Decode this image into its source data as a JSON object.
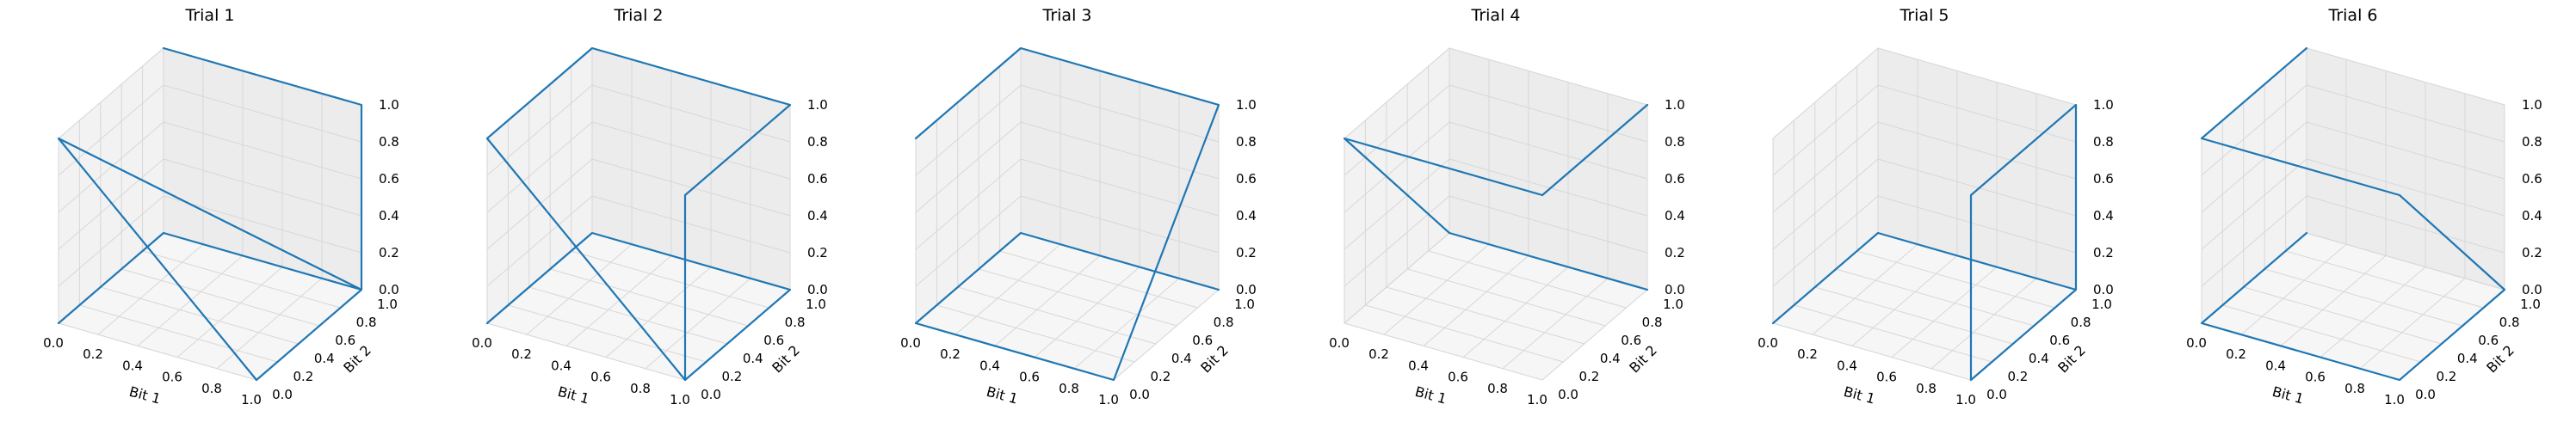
{
  "colors": {
    "line": "#1f77b4",
    "pane_left": "#f2f2f2",
    "pane_right": "#ececec",
    "pane_floor": "#f6f6f6",
    "grid": "#d7d7d7"
  },
  "chart_data": [
    {
      "type": "line",
      "title": "Trial 1",
      "xlabel": "Bit 1",
      "ylabel": "Bit 2",
      "zlabel": "",
      "xlim": [
        0,
        1
      ],
      "ylim": [
        0,
        1
      ],
      "zlim": [
        0,
        1
      ],
      "xticks": [
        "0.0",
        "0.2",
        "0.4",
        "0.6",
        "0.8",
        "1.0"
      ],
      "yticks": [
        "0.0",
        "0.2",
        "0.4",
        "0.6",
        "0.8",
        "1.0"
      ],
      "zticks": [
        "0.0",
        "0.2",
        "0.4",
        "0.6",
        "0.8",
        "1.0"
      ],
      "grid": true,
      "series": [
        {
          "x": [
            0,
            0,
            1,
            1,
            0,
            1,
            1,
            0
          ],
          "y": [
            0,
            1,
            1,
            0,
            0,
            1,
            1,
            1
          ],
          "z": [
            0,
            0,
            0,
            0,
            1,
            0,
            1,
            1
          ]
        }
      ]
    },
    {
      "type": "line",
      "title": "Trial 2",
      "xlabel": "Bit 1",
      "ylabel": "Bit 2",
      "zlabel": "",
      "xlim": [
        0,
        1
      ],
      "ylim": [
        0,
        1
      ],
      "zlim": [
        0,
        1
      ],
      "xticks": [
        "0.0",
        "0.2",
        "0.4",
        "0.6",
        "0.8",
        "1.0"
      ],
      "yticks": [
        "0.0",
        "0.2",
        "0.4",
        "0.6",
        "0.8",
        "1.0"
      ],
      "zticks": [
        "0.0",
        "0.2",
        "0.4",
        "0.6",
        "0.8",
        "1.0"
      ],
      "grid": true,
      "series": [
        {
          "x": [
            0,
            0,
            1,
            1,
            0,
            0,
            1,
            1,
            1
          ],
          "y": [
            0,
            1,
            1,
            0,
            0,
            1,
            1,
            0,
            0
          ],
          "z": [
            0,
            0,
            0,
            0,
            1,
            1,
            1,
            1,
            0
          ]
        }
      ]
    },
    {
      "type": "line",
      "title": "Trial 3",
      "xlabel": "Bit 1",
      "ylabel": "Bit 2",
      "zlabel": "",
      "xlim": [
        0,
        1
      ],
      "ylim": [
        0,
        1
      ],
      "zlim": [
        0,
        1
      ],
      "xticks": [
        "0.0",
        "0.2",
        "0.4",
        "0.6",
        "0.8",
        "1.0"
      ],
      "yticks": [
        "0.0",
        "0.2",
        "0.4",
        "0.6",
        "0.8",
        "1.0"
      ],
      "zticks": [
        "0.0",
        "0.2",
        "0.4",
        "0.6",
        "0.8",
        "1.0"
      ],
      "grid": true,
      "series": [
        {
          "x": [
            0,
            0,
            1,
            1,
            0,
            0,
            1
          ],
          "y": [
            0,
            1,
            1,
            0,
            0,
            1,
            1
          ],
          "z": [
            1,
            1,
            1,
            0,
            0,
            0,
            0
          ]
        }
      ]
    },
    {
      "type": "line",
      "title": "Trial 4",
      "xlabel": "Bit 1",
      "ylabel": "Bit 2",
      "zlabel": "",
      "xlim": [
        0,
        1
      ],
      "ylim": [
        0,
        1
      ],
      "zlim": [
        0,
        1
      ],
      "xticks": [
        "0.0",
        "0.2",
        "0.4",
        "0.6",
        "0.8",
        "1.0"
      ],
      "yticks": [
        "0.0",
        "0.2",
        "0.4",
        "0.6",
        "0.8",
        "1.0"
      ],
      "zticks": [
        "0.0",
        "0.2",
        "0.4",
        "0.6",
        "0.8",
        "1.0"
      ],
      "grid": true,
      "series": [
        {
          "x": [
            1,
            1,
            0,
            0,
            1,
            1
          ],
          "y": [
            1,
            0,
            0,
            1,
            1,
            1
          ],
          "z": [
            1,
            1,
            1,
            0,
            0,
            0
          ]
        }
      ]
    },
    {
      "type": "line",
      "title": "Trial 5",
      "xlabel": "Bit 1",
      "ylabel": "Bit 2",
      "zlabel": "",
      "xlim": [
        0,
        1
      ],
      "ylim": [
        0,
        1
      ],
      "zlim": [
        0,
        1
      ],
      "xticks": [
        "0.0",
        "0.2",
        "0.4",
        "0.6",
        "0.8",
        "1.0"
      ],
      "yticks": [
        "0.0",
        "0.2",
        "0.4",
        "0.6",
        "0.8",
        "1.0"
      ],
      "zticks": [
        "0.0",
        "0.2",
        "0.4",
        "0.6",
        "0.8",
        "1.0"
      ],
      "grid": true,
      "series": [
        {
          "x": [
            0,
            0,
            1,
            1,
            1,
            1,
            1
          ],
          "y": [
            0,
            1,
            1,
            0,
            0,
            1,
            1
          ],
          "z": [
            0,
            0,
            0,
            0,
            1,
            1,
            0
          ]
        }
      ]
    },
    {
      "type": "line",
      "title": "Trial 6",
      "xlabel": "Bit 1",
      "ylabel": "Bit 2",
      "zlabel": "",
      "xlim": [
        0,
        1
      ],
      "ylim": [
        0,
        1
      ],
      "zlim": [
        0,
        1
      ],
      "xticks": [
        "0.0",
        "0.2",
        "0.4",
        "0.6",
        "0.8",
        "1.0"
      ],
      "yticks": [
        "0.0",
        "0.2",
        "0.4",
        "0.6",
        "0.8",
        "1.0"
      ],
      "zticks": [
        "0.0",
        "0.2",
        "0.4",
        "0.6",
        "0.8",
        "1.0"
      ],
      "grid": true,
      "series": [
        {
          "x": [
            0,
            0,
            1,
            1,
            1,
            0,
            0
          ],
          "y": [
            1,
            0,
            0,
            1,
            0,
            0,
            1
          ],
          "z": [
            1,
            1,
            1,
            0,
            0,
            0,
            0
          ]
        }
      ]
    }
  ]
}
